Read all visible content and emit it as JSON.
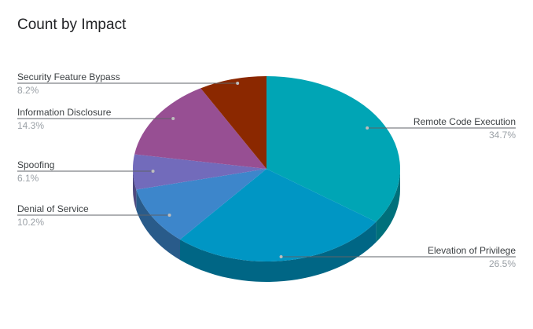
{
  "chart_data": {
    "type": "pie",
    "title": "Count by Impact",
    "three_d": true,
    "start_angle_deg": 0,
    "direction": "clockwise",
    "slices": [
      {
        "name": "Remote Code Execution",
        "value": 34.7,
        "label": "34.7%",
        "color": "#00a5b5"
      },
      {
        "name": "Elevation of Privilege",
        "value": 26.5,
        "label": "26.5%",
        "color": "#0096c4"
      },
      {
        "name": "Denial of Service",
        "value": 10.2,
        "label": "10.2%",
        "color": "#3d86cb"
      },
      {
        "name": "Spoofing",
        "value": 6.1,
        "label": "6.1%",
        "color": "#726bbb"
      },
      {
        "name": "Information Disclosure",
        "value": 14.3,
        "label": "14.3%",
        "color": "#974f93"
      },
      {
        "name": "Security Feature Bypass",
        "value": 8.2,
        "label": "8.2%",
        "color": "#8b2800"
      }
    ]
  }
}
